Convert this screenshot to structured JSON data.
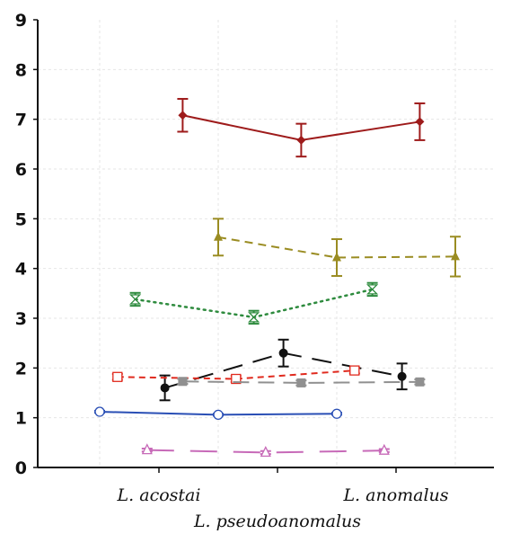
{
  "chart_data": {
    "type": "line",
    "title": "",
    "xlabel": "",
    "ylabel": "",
    "ylim": [
      0,
      9
    ],
    "yticks": [
      "0",
      "1",
      "2",
      "3",
      "4",
      "5",
      "6",
      "7",
      "8",
      "9"
    ],
    "x_categories": [
      "L. acostai",
      "L. pseudoanomalus",
      "L. anomalus"
    ],
    "grid": true,
    "series": [
      {
        "color": "#9e1b1b",
        "dash": "",
        "marker": "diamond",
        "x": [
          0.2,
          1.2,
          2.2
        ],
        "values": [
          7.08,
          6.58,
          6.95
        ],
        "err": [
          0.33,
          0.33,
          0.37
        ]
      },
      {
        "color": "#9a8c22",
        "dash": "9 6",
        "marker": "triangle",
        "x": [
          0.5,
          1.5,
          2.5
        ],
        "values": [
          4.63,
          4.22,
          4.24
        ],
        "err": [
          0.37,
          0.37,
          0.4
        ]
      },
      {
        "color": "#2e8b3e",
        "dash": "2 5",
        "marker": "hourglass",
        "x": [
          -0.2,
          0.8,
          1.8
        ],
        "values": [
          3.38,
          3.02,
          3.58
        ],
        "err": [
          0.13,
          0.13,
          0.13
        ]
      },
      {
        "color": "#111111",
        "dash": "22 12",
        "marker": "circle",
        "x": [
          0.05,
          1.05,
          2.05
        ],
        "values": [
          1.6,
          2.3,
          1.83
        ],
        "err": [
          0.25,
          0.27,
          0.26
        ]
      },
      {
        "color": "#e02a1e",
        "dash": "7 5",
        "marker": "square-open",
        "x": [
          -0.35,
          0.65,
          1.65
        ],
        "values": [
          1.82,
          1.78,
          1.95
        ],
        "err": [
          0.06,
          0.06,
          0.06
        ]
      },
      {
        "color": "#909090",
        "dash": "18 10",
        "marker": "square",
        "x": [
          0.2,
          1.2,
          2.2
        ],
        "values": [
          1.73,
          1.7,
          1.72
        ],
        "err": [
          0.05,
          0.05,
          0.05
        ]
      },
      {
        "color": "#2a4fb5",
        "dash": "",
        "marker": "circle-open",
        "x": [
          -0.5,
          0.5,
          1.5
        ],
        "values": [
          1.12,
          1.06,
          1.08
        ],
        "err": [
          0.02,
          0.02,
          0.02
        ]
      },
      {
        "color": "#c76ab8",
        "dash": "30 18",
        "marker": "triangle-open",
        "x": [
          -0.1,
          0.9,
          1.9
        ],
        "values": [
          0.35,
          0.3,
          0.34
        ],
        "err": [
          0.03,
          0.03,
          0.03
        ]
      }
    ]
  }
}
